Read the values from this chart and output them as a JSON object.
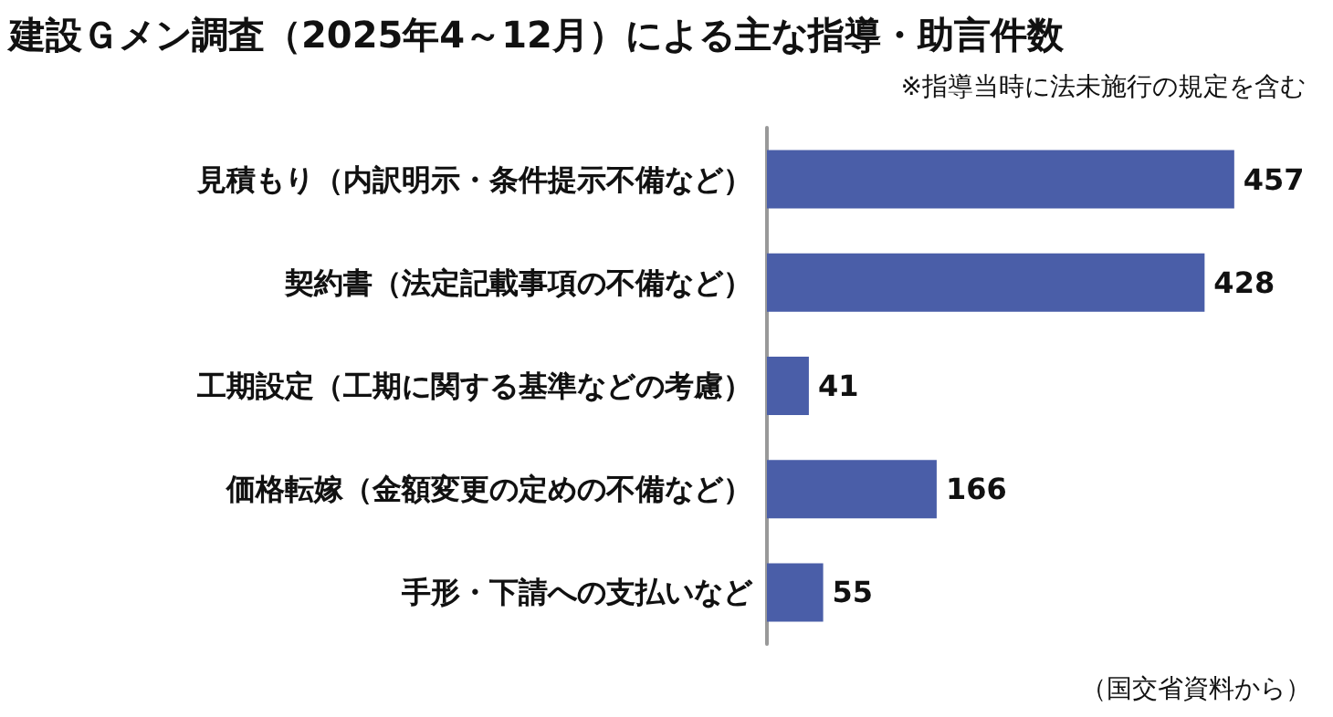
{
  "chart_data": {
    "type": "bar",
    "orientation": "horizontal",
    "title": "建設Ｇメン調査（2025年4～12月）による主な指導・助言件数",
    "subtitle": "※指導当時に法未施行の規定を含む",
    "categories": [
      "見積もり（内訳明示・条件提示不備など）",
      "契約書（法定記載事項の不備など）",
      "工期設定（工期に関する基準などの考慮）",
      "価格転嫁（金額変更の定めの不備など）",
      "手形・下請への支払いなど"
    ],
    "values": [
      457,
      428,
      41,
      166,
      55
    ],
    "color": "#4a5ea8",
    "data_labels": true,
    "grid": false,
    "annotations": [
      "（国交省資料から）"
    ]
  }
}
